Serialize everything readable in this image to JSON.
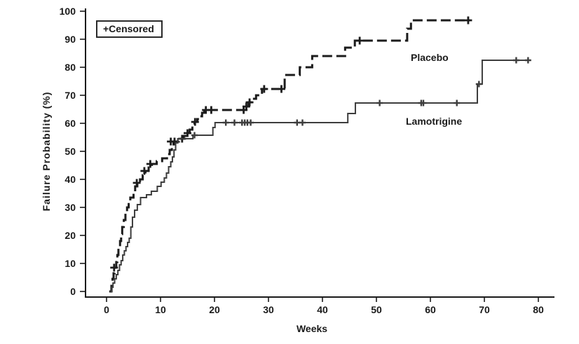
{
  "chart_data": {
    "type": "line",
    "subtype": "kaplan-meier-step",
    "title": "",
    "xlabel": "Weeks",
    "ylabel": "Failure Probability (%)",
    "xlim": [
      0,
      80
    ],
    "ylim": [
      0,
      100
    ],
    "xticks": [
      0,
      10,
      20,
      30,
      40,
      50,
      60,
      70,
      80
    ],
    "yticks": [
      0,
      10,
      20,
      30,
      40,
      50,
      60,
      70,
      80,
      90,
      100
    ],
    "grid": false,
    "legend": {
      "position": "top-left",
      "censored_label": "+Censored",
      "censored_marker": "plus"
    },
    "axis_color": "#1a1a1a",
    "series": [
      {
        "name": "Placebo",
        "style": "dashed",
        "color": "#1c1c1c",
        "line_width": 3,
        "label_week": 56.4,
        "label_pct": 83,
        "end_week": 67.3,
        "points": [
          [
            0.5,
            0
          ],
          [
            0.9,
            2
          ],
          [
            1.1,
            4.5
          ],
          [
            1.3,
            6.5
          ],
          [
            1.5,
            8.5
          ],
          [
            1.8,
            10.5
          ],
          [
            2.0,
            13
          ],
          [
            2.2,
            15.5
          ],
          [
            2.5,
            18
          ],
          [
            2.7,
            20.5
          ],
          [
            2.9,
            23
          ],
          [
            3.2,
            25.5
          ],
          [
            3.5,
            28
          ],
          [
            3.8,
            30
          ],
          [
            4.1,
            31.75
          ],
          [
            4.4,
            33.5
          ],
          [
            5.0,
            35.5
          ],
          [
            5.3,
            37.5
          ],
          [
            5.7,
            38.75
          ],
          [
            6.2,
            40
          ],
          [
            6.7,
            41.5
          ],
          [
            7.2,
            43
          ],
          [
            7.8,
            44.25
          ],
          [
            8.4,
            45.5
          ],
          [
            9.3,
            46.5
          ],
          [
            10.3,
            47.5
          ],
          [
            11.2,
            49
          ],
          [
            11.7,
            50.5
          ],
          [
            12.1,
            52
          ],
          [
            12.4,
            53.5
          ],
          [
            13.4,
            54.5
          ],
          [
            14.3,
            55.5
          ],
          [
            14.9,
            56.5
          ],
          [
            15.4,
            57.75
          ],
          [
            15.9,
            59
          ],
          [
            16.3,
            60.5
          ],
          [
            16.8,
            61.5
          ],
          [
            17.3,
            62.5
          ],
          [
            17.7,
            63.75
          ],
          [
            18.1,
            64.75
          ],
          [
            25.7,
            66
          ],
          [
            26.3,
            67.5
          ],
          [
            26.9,
            68.75
          ],
          [
            27.7,
            70
          ],
          [
            28.8,
            72.25
          ],
          [
            33.0,
            77.25
          ],
          [
            35.8,
            80
          ],
          [
            38.1,
            84
          ],
          [
            44.2,
            87
          ],
          [
            46.0,
            89.5
          ],
          [
            55.7,
            93.75
          ],
          [
            56.4,
            96.75
          ]
        ],
        "censored": [
          [
            1.4,
            8.5
          ],
          [
            5.6,
            38.75
          ],
          [
            7.0,
            43
          ],
          [
            8.1,
            45.5
          ],
          [
            11.9,
            53.5
          ],
          [
            12.6,
            53.5
          ],
          [
            14.0,
            54.5
          ],
          [
            15.0,
            56.5
          ],
          [
            16.4,
            60.5
          ],
          [
            18.4,
            64.75
          ],
          [
            19.4,
            64.75
          ],
          [
            25.4,
            64.75
          ],
          [
            25.9,
            66
          ],
          [
            26.5,
            67.5
          ],
          [
            29.2,
            72.25
          ],
          [
            32.4,
            72.25
          ],
          [
            46.9,
            89.5
          ],
          [
            67.0,
            96.75
          ]
        ]
      },
      {
        "name": "Lamotrigine",
        "style": "solid",
        "color": "#3d3d3d",
        "line_width": 2,
        "label_week": 55.5,
        "label_pct": 59,
        "end_week": 78.5,
        "points": [
          [
            0.7,
            0
          ],
          [
            1.0,
            1.5
          ],
          [
            1.2,
            3
          ],
          [
            1.5,
            4.5
          ],
          [
            1.8,
            6
          ],
          [
            2.1,
            7.5
          ],
          [
            2.4,
            9.5
          ],
          [
            2.7,
            11
          ],
          [
            3.0,
            13
          ],
          [
            3.3,
            14.5
          ],
          [
            3.6,
            16
          ],
          [
            3.9,
            17.5
          ],
          [
            4.2,
            19
          ],
          [
            4.5,
            23
          ],
          [
            4.8,
            26.5
          ],
          [
            5.2,
            29
          ],
          [
            5.7,
            31
          ],
          [
            6.3,
            33.5
          ],
          [
            7.4,
            34.5
          ],
          [
            8.3,
            35.75
          ],
          [
            9.4,
            37.5
          ],
          [
            10.1,
            39
          ],
          [
            10.7,
            40.5
          ],
          [
            11.1,
            42.25
          ],
          [
            11.5,
            44.5
          ],
          [
            11.9,
            46.25
          ],
          [
            12.2,
            48
          ],
          [
            12.5,
            50.5
          ],
          [
            12.8,
            53
          ],
          [
            13.2,
            54.5
          ],
          [
            16.0,
            55.75
          ],
          [
            19.7,
            58.5
          ],
          [
            20.1,
            60.25
          ],
          [
            44.7,
            63.5
          ],
          [
            46.1,
            67.25
          ],
          [
            68.7,
            74
          ],
          [
            69.6,
            82.5
          ]
        ],
        "censored": [
          [
            16.3,
            55.75
          ],
          [
            22.1,
            60.25
          ],
          [
            23.7,
            60.25
          ],
          [
            25.1,
            60.25
          ],
          [
            25.6,
            60.25
          ],
          [
            26.1,
            60.25
          ],
          [
            26.7,
            60.25
          ],
          [
            35.3,
            60.25
          ],
          [
            36.3,
            60.25
          ],
          [
            50.6,
            67.25
          ],
          [
            58.3,
            67.25
          ],
          [
            58.7,
            67.25
          ],
          [
            64.9,
            67.25
          ],
          [
            69.0,
            74
          ],
          [
            75.9,
            82.5
          ],
          [
            78.1,
            82.5
          ]
        ]
      }
    ]
  }
}
